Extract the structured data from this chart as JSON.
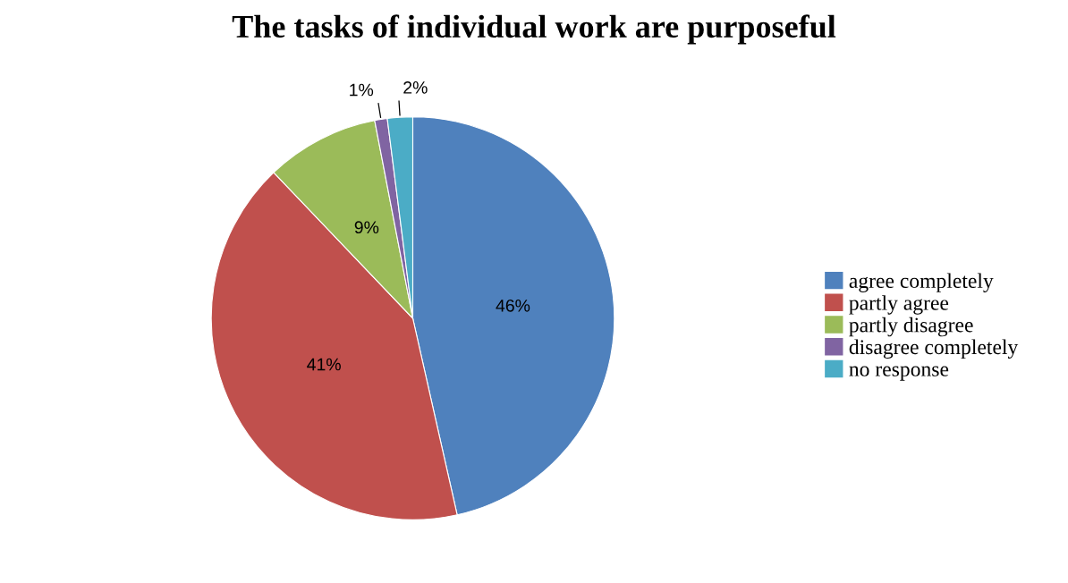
{
  "chart_data": {
    "type": "pie",
    "title": "The tasks of individual work are purposeful",
    "categories": [
      "agree completely",
      "partly agree",
      "partly disagree",
      "disagree completely",
      "no response"
    ],
    "values": [
      46,
      41,
      9,
      1,
      2
    ],
    "colors": [
      "#4f81bd",
      "#c0504d",
      "#9bbb59",
      "#8064a2",
      "#4bacc6"
    ],
    "value_labels": [
      "46%",
      "41%",
      "9%",
      "1%",
      "2%"
    ],
    "legend": "right"
  }
}
